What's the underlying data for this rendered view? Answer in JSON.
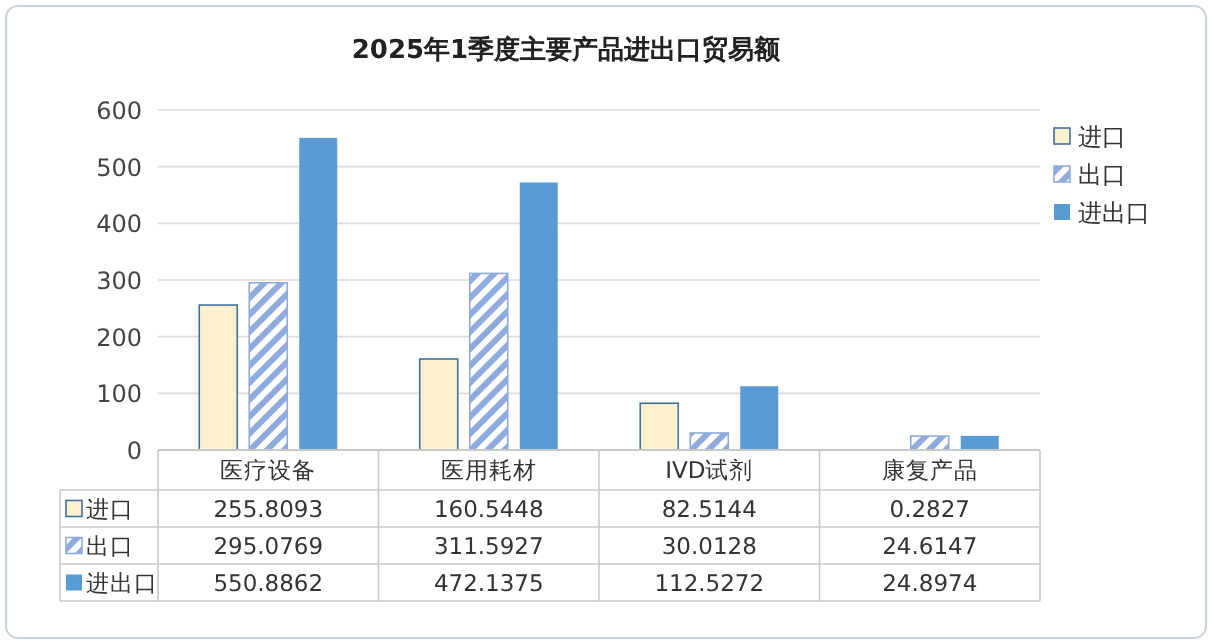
{
  "chart_data": {
    "type": "bar",
    "title": "2025年1季度主要产品进出口贸易额",
    "categories": [
      "医疗设备",
      "医用耗材",
      "IVD试剂",
      "康复产品"
    ],
    "series": [
      {
        "name": "进口",
        "color": "#fdf0cc",
        "values": [
          255.8093,
          160.5448,
          82.5144,
          0.2827
        ]
      },
      {
        "name": "出口",
        "color": "#8faadc",
        "values": [
          295.0769,
          311.5927,
          30.0128,
          24.6147
        ]
      },
      {
        "name": "进出口",
        "color": "#5b9bd5",
        "values": [
          550.8862,
          472.1375,
          112.5272,
          24.8974
        ]
      }
    ],
    "ylim": [
      0,
      600
    ],
    "yticks": [
      0,
      100,
      200,
      300,
      400,
      500,
      600
    ],
    "grid": "y",
    "legend": "right",
    "data_labels": true
  }
}
